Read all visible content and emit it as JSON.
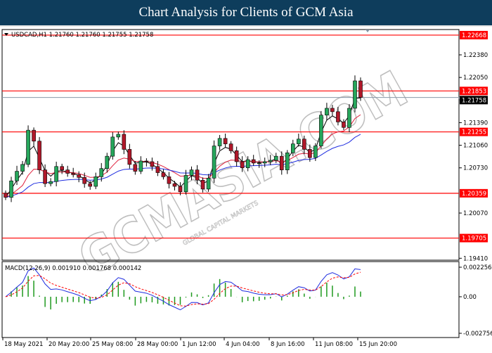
{
  "title": "Chart Analysis for Clients of GCM Asia",
  "symbol_header": "USDCAD,H1  1.21760 1.21760 1.21755 1.21758",
  "watermark": {
    "brand": "GCMASIA.COM",
    "tagline": "GLOBAL CAPITAL MARKETS"
  },
  "colors": {
    "bull": "#26a65b",
    "bear": "#b0182a",
    "level": "#ff0000",
    "ma_fast": "#000000",
    "ma_mid": "#e0203c",
    "ma_slow": "#1f2de0",
    "macd": "#1f2de0",
    "signal": "#ff0000",
    "hist": "#1f9a1f"
  },
  "chart_data": [
    {
      "type": "candlestick",
      "symbol": "USDCAD",
      "timeframe": "H1",
      "ylim": [
        1.1941,
        1.2271
      ],
      "y_ticks": [
        "1.22380",
        "1.22050",
        "1.21390",
        "1.21060",
        "1.20730",
        "1.20070",
        "1.19410"
      ],
      "levels": [
        "1.22668",
        "1.21853",
        "1.21255",
        "1.20359",
        "1.19705"
      ],
      "current_price": "1.21758",
      "closes": [
        1.203,
        1.2054,
        1.2068,
        1.2078,
        1.2128,
        1.2112,
        1.207,
        1.205,
        1.2053,
        1.2075,
        1.207,
        1.2065,
        1.2063,
        1.2059,
        1.205,
        1.2046,
        1.206,
        1.2072,
        1.209,
        1.2118,
        1.2122,
        1.21,
        1.2078,
        1.2068,
        1.2083,
        1.2082,
        1.2075,
        1.2066,
        1.206,
        1.205,
        1.2046,
        1.2038,
        1.2062,
        1.207,
        1.2055,
        1.2042,
        1.2058,
        1.2105,
        1.2116,
        1.2108,
        1.2098,
        1.2082,
        1.2073,
        1.2085,
        1.208,
        1.208,
        1.2082,
        1.2084,
        1.209,
        1.207,
        1.2095,
        1.2108,
        1.2115,
        1.21,
        1.2088,
        1.2105,
        1.215,
        1.216,
        1.2155,
        1.214,
        1.2132,
        1.216,
        1.22,
        1.21758
      ],
      "x_ticks": [
        "18 May 2021",
        "20 May 20:00",
        "25 May 08:00",
        "28 May 00:00",
        "1 Jun 12:00",
        "4 Jun 04:00",
        "8 Jun 16:00",
        "11 Jun 08:00",
        "15 Jun 20:00"
      ]
    },
    {
      "type": "macd",
      "label": "MACD(12,26,9) 0.001910 0.001768 0.000142",
      "ylim": [
        -0.002756,
        0.002256
      ],
      "y_ticks": [
        "0.002256",
        "0.00",
        "-0.002756"
      ]
    }
  ]
}
